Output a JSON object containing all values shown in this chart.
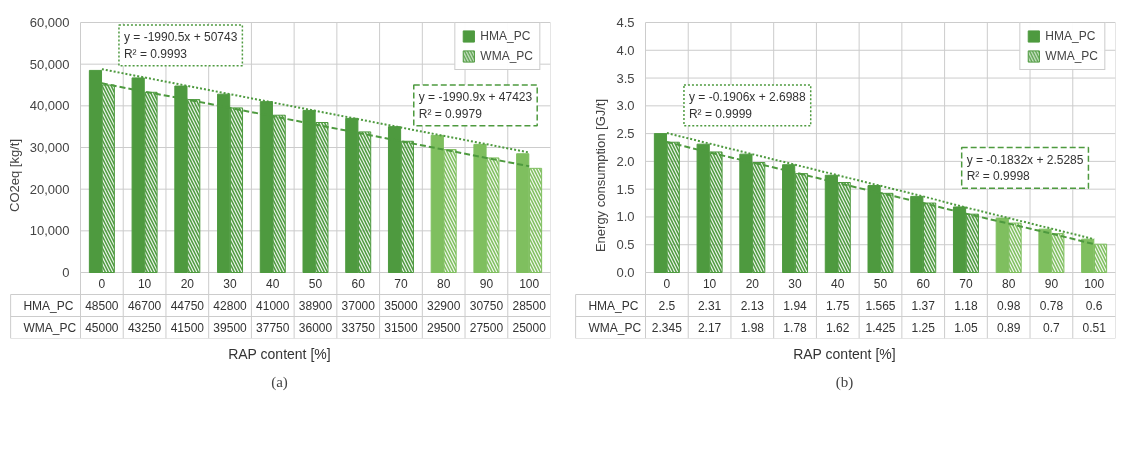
{
  "chart_data": [
    {
      "type": "bar",
      "categories": [
        "0",
        "10",
        "20",
        "30",
        "40",
        "50",
        "60",
        "70",
        "80",
        "90",
        "100"
      ],
      "xlabel": "RAP content [%]",
      "ylabel": "CO2eq [kg/t]",
      "ylim": [
        0,
        60000
      ],
      "yticks": [
        {
          "value": 0,
          "label": "0"
        },
        {
          "value": 10000,
          "label": "10,000"
        },
        {
          "value": 20000,
          "label": "20,000"
        },
        {
          "value": 30000,
          "label": "30,000"
        },
        {
          "value": 40000,
          "label": "40,000"
        },
        {
          "value": 50000,
          "label": "50,000"
        },
        {
          "value": 60000,
          "label": "60,000"
        }
      ],
      "grid": true,
      "legend": "top right",
      "series": [
        {
          "name": "HMA_PC",
          "colors": [
            "#4e9a3f",
            "#4e9a3f",
            "#4e9a3f",
            "#4e9a3f",
            "#4e9a3f",
            "#4e9a3f",
            "#4e9a3f",
            "#4e9a3f",
            "#7fbf5f",
            "#7fbf5f",
            "#7fbf5f"
          ],
          "values": [
            48500,
            46700,
            44750,
            42800,
            41000,
            38900,
            37000,
            35000,
            32900,
            30750,
            28500
          ],
          "value_labels": [
            "48500",
            "46700",
            "44750",
            "42800",
            "41000",
            "38900",
            "37000",
            "35000",
            "32900",
            "30750",
            "28500"
          ]
        },
        {
          "name": "WMA_PC",
          "colors": [
            "#4e9a3f",
            "#4e9a3f",
            "#4e9a3f",
            "#4e9a3f",
            "#4e9a3f",
            "#4e9a3f",
            "#4e9a3f",
            "#4e9a3f",
            "#7fbf5f",
            "#7fbf5f",
            "#7fbf5f"
          ],
          "values": [
            45000,
            43250,
            41500,
            39500,
            37750,
            36000,
            33750,
            31500,
            29500,
            27500,
            25000
          ],
          "value_labels": [
            "45000",
            "43250",
            "41500",
            "39500",
            "37750",
            "36000",
            "33750",
            "31500",
            "29500",
            "27500",
            "25000"
          ]
        },
        {
          "type": "line",
          "color": "#4e9a3f",
          "line_style": "dotted",
          "values": [
            48800,
            46800,
            44800,
            42800,
            40800,
            38800,
            36800,
            34800,
            32800,
            30800,
            28800
          ]
        },
        {
          "type": "line",
          "color": "#4e9a3f",
          "line_style": "dashed",
          "values": [
            45400,
            43400,
            41500,
            39500,
            37500,
            35500,
            33500,
            31500,
            29500,
            27500,
            25500
          ]
        }
      ],
      "annotations": [
        "y = -1990.5x + 50743\nR² = 0.9993",
        "y = -1990.9x + 47423\nR² = 0.9979",
        "(a)"
      ]
    },
    {
      "type": "bar",
      "categories": [
        "0",
        "10",
        "20",
        "30",
        "40",
        "50",
        "60",
        "70",
        "80",
        "90",
        "100"
      ],
      "xlabel": "RAP content [%]",
      "ylabel": "Energy consumption [GJ/t]",
      "ylim": [
        0,
        4.5
      ],
      "yticks": [
        {
          "value": 0,
          "label": "0.0"
        },
        0.5,
        {
          "value": 1,
          "label": "1.0"
        },
        1.5,
        {
          "value": 2,
          "label": "2.0"
        },
        2.5,
        {
          "value": 3,
          "label": "3.0"
        },
        3.5,
        {
          "value": 4,
          "label": "4.0"
        },
        4.5
      ],
      "grid": true,
      "legend": "top right",
      "series": [
        {
          "name": "HMA_PC",
          "colors": [
            "#4e9a3f",
            "#4e9a3f",
            "#4e9a3f",
            "#4e9a3f",
            "#4e9a3f",
            "#4e9a3f",
            "#4e9a3f",
            "#4e9a3f",
            "#7fbf5f",
            "#7fbf5f",
            "#7fbf5f"
          ],
          "values": [
            2.5,
            2.31,
            2.13,
            1.94,
            1.75,
            1.565,
            1.37,
            1.18,
            0.98,
            0.78,
            0.6
          ],
          "value_labels": [
            "2.5",
            "2.31",
            "2.13",
            "1.94",
            "1.75",
            "1.565",
            "1.37",
            "1.18",
            "0.98",
            "0.78",
            "0.6"
          ]
        },
        {
          "name": "WMA_PC",
          "colors": [
            "#4e9a3f",
            "#4e9a3f",
            "#4e9a3f",
            "#4e9a3f",
            "#4e9a3f",
            "#4e9a3f",
            "#4e9a3f",
            "#4e9a3f",
            "#7fbf5f",
            "#7fbf5f",
            "#7fbf5f"
          ],
          "values": [
            2.345,
            2.17,
            1.98,
            1.78,
            1.62,
            1.425,
            1.25,
            1.05,
            0.89,
            0.7,
            0.51
          ],
          "value_labels": [
            "2.345",
            "2.17",
            "1.98",
            "1.78",
            "1.62",
            "1.425",
            "1.25",
            "1.05",
            "0.89",
            "0.7",
            "0.51"
          ]
        },
        {
          "type": "line",
          "color": "#4e9a3f",
          "line_style": "dotted",
          "values": [
            2.51,
            2.32,
            2.13,
            1.94,
            1.75,
            1.56,
            1.37,
            1.17,
            0.98,
            0.79,
            0.6
          ]
        },
        {
          "type": "line",
          "color": "#4e9a3f",
          "line_style": "dashed",
          "values": [
            2.35,
            2.16,
            1.98,
            1.8,
            1.61,
            1.43,
            1.25,
            1.06,
            0.88,
            0.7,
            0.51
          ]
        }
      ],
      "annotations": [
        "y = -0.1906x + 2.6988\nR² = 0.9999",
        "y = -0.1832x + 2.5285\nR² = 0.9998",
        "(b)"
      ]
    }
  ]
}
